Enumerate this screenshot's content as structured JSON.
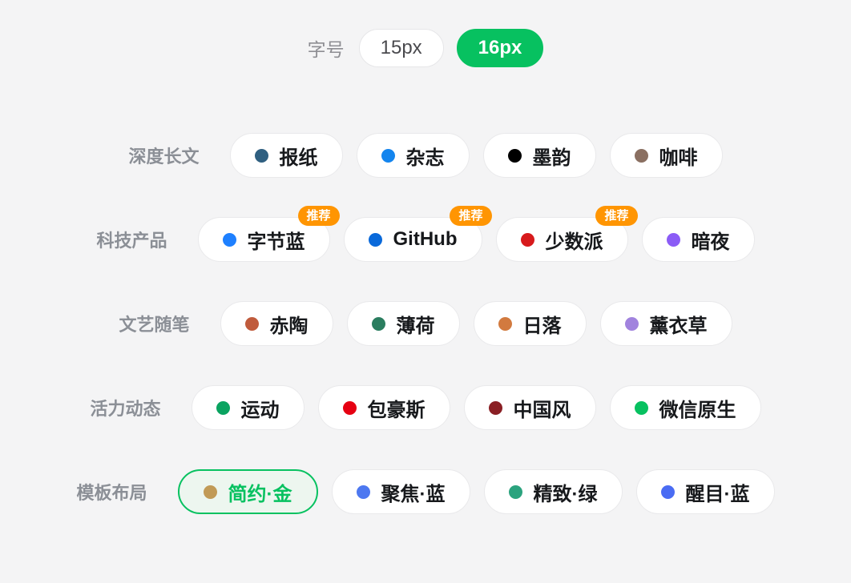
{
  "page": {
    "background": "#F4F4F5",
    "accent_green": "#07C160",
    "badge_color": "#FF9502"
  },
  "font_size_selector": {
    "label": "字号",
    "options": [
      {
        "label": "15px",
        "selected": false
      },
      {
        "label": "16px",
        "selected": true
      }
    ]
  },
  "recommended_badge_label": "推荐",
  "theme_groups": [
    {
      "label": "深度长文",
      "themes": [
        {
          "name": "报纸",
          "dot_color": "#2F5F80",
          "recommended": false,
          "selected": false
        },
        {
          "name": "杂志",
          "dot_color": "#1485EE",
          "recommended": false,
          "selected": false
        },
        {
          "name": "墨韵",
          "dot_color": "#000000",
          "recommended": false,
          "selected": false
        },
        {
          "name": "咖啡",
          "dot_color": "#8A6F61",
          "recommended": false,
          "selected": false
        }
      ]
    },
    {
      "label": "科技产品",
      "themes": [
        {
          "name": "字节蓝",
          "dot_color": "#1E80FF",
          "recommended": true,
          "selected": false
        },
        {
          "name": "GitHub",
          "dot_color": "#0969DA",
          "recommended": true,
          "selected": false
        },
        {
          "name": "少数派",
          "dot_color": "#D71A1C",
          "recommended": true,
          "selected": false
        },
        {
          "name": "暗夜",
          "dot_color": "#8B5CF6",
          "recommended": false,
          "selected": false
        }
      ]
    },
    {
      "label": "文艺随笔",
      "themes": [
        {
          "name": "赤陶",
          "dot_color": "#C05B3C",
          "recommended": false,
          "selected": false
        },
        {
          "name": "薄荷",
          "dot_color": "#2A7D5F",
          "recommended": false,
          "selected": false
        },
        {
          "name": "日落",
          "dot_color": "#D27A3F",
          "recommended": false,
          "selected": false
        },
        {
          "name": "薰衣草",
          "dot_color": "#A183DE",
          "recommended": false,
          "selected": false
        }
      ]
    },
    {
      "label": "活力动态",
      "themes": [
        {
          "name": "运动",
          "dot_color": "#0AA360",
          "recommended": false,
          "selected": false
        },
        {
          "name": "包豪斯",
          "dot_color": "#E60012",
          "recommended": false,
          "selected": false
        },
        {
          "name": "中国风",
          "dot_color": "#8A1F24",
          "recommended": false,
          "selected": false
        },
        {
          "name": "微信原生",
          "dot_color": "#07C160",
          "recommended": false,
          "selected": false
        }
      ]
    },
    {
      "label": "模板布局",
      "themes": [
        {
          "name": "简约·金",
          "dot_color": "#C19A56",
          "recommended": false,
          "selected": true
        },
        {
          "name": "聚焦·蓝",
          "dot_color": "#4D78F0",
          "recommended": false,
          "selected": false
        },
        {
          "name": "精致·绿",
          "dot_color": "#2BA37E",
          "recommended": false,
          "selected": false
        },
        {
          "name": "醒目·蓝",
          "dot_color": "#4A6CF3",
          "recommended": false,
          "selected": false
        }
      ]
    }
  ]
}
